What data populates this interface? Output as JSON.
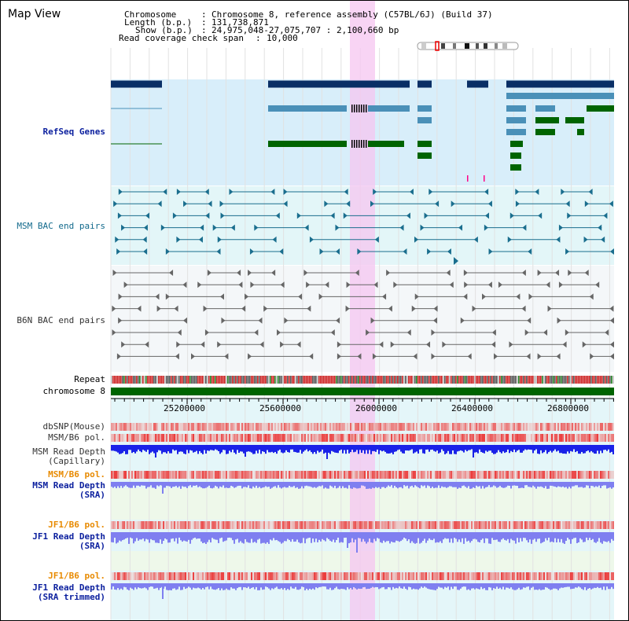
{
  "title": "Map View",
  "info": {
    "chromosome_key": "Chromosome",
    "chromosome_val": "Chromosome 8, reference assembly (C57BL/6J) (Build 37)",
    "length_key": "Length (b.p.)",
    "length_val": "131,738,871",
    "show_key": "Show (b.p.)",
    "show_val": "24,975,048-27,075,707 : 2,100,660 bp",
    "span_key": "Read coverage check span",
    "span_val": "10,000"
  },
  "tracks": {
    "refseq": "RefSeq Genes",
    "msm_bac": "MSM BAC end pairs",
    "b6n_bac": "B6N BAC end pairs",
    "repeat": "Repeat",
    "chromosome": "chromosome 8",
    "dbsnp": "dbSNP(Mouse)",
    "msm_b6_pol_1": "MSM/B6 pol.",
    "msm_depth_cap_1": "MSM Read Depth",
    "msm_depth_cap_2": "(Capillary)",
    "msm_b6_pol_2": "MSM/B6 pol.",
    "msm_depth_sra_1": "MSM Read Depth",
    "msm_depth_sra_2": "(SRA)",
    "jf1_b6_pol_1": "JF1/B6 pol.",
    "jf1_depth_sra_1": "JF1 Read Depth",
    "jf1_depth_sra_2": "(SRA)",
    "jf1_b6_pol_2": "JF1/B6 pol.",
    "jf1_depth_trim_1": "JF1 Read Depth",
    "jf1_depth_trim_2": "(SRA trimmed)"
  },
  "axis": {
    "ticks": [
      "25200000",
      "25600000",
      "26000000",
      "26400000",
      "26800000"
    ]
  },
  "colors": {
    "gene_dark": "#0a2f66",
    "gene_mid": "#4a90b8",
    "gene_green": "#006400",
    "msm_pair": "#1a6e8e",
    "b6n_pair": "#666666",
    "chrom_bar": "#006400",
    "highlight": "#f5c6f0",
    "depth_blue": "#1a22e8",
    "depth_light": "#7f7ff0",
    "pol_red": "#e83030"
  }
}
